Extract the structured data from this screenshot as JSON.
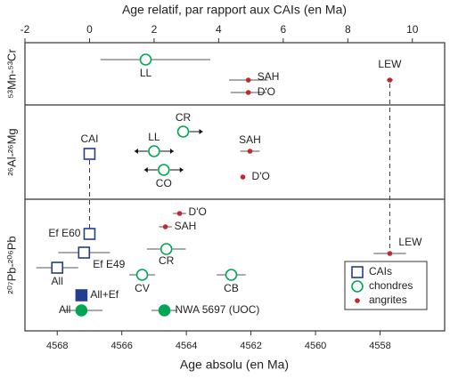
{
  "chart_data": {
    "type": "errorbar",
    "title": "Age relatif, par rapport aux CAIs (en Ma)",
    "xlabel": "Age absolu (en Ma)",
    "xlim": [
      -2,
      11
    ],
    "xticks": [
      -2,
      0,
      2,
      4,
      6,
      8,
      10
    ],
    "x2lim": [
      4569,
      4556
    ],
    "x2ticks": [
      4568,
      4566,
      4564,
      4562,
      4560,
      4558
    ],
    "series": [
      {
        "name": "CAIs",
        "color": "#263c8f",
        "marker": "square"
      },
      {
        "name": "chondres",
        "color": "#00a651",
        "marker": "circle"
      },
      {
        "name": "angrites",
        "color": "#c1272d",
        "marker": "dot"
      }
    ],
    "panels": [
      {
        "ylabel": "⁵³Mn-⁵³Cr",
        "points": [
          {
            "label": "LL",
            "value": 1.74,
            "err": [
              1.4,
              2.0
            ],
            "group": 1
          },
          {
            "label": "SAH",
            "value": 4.92,
            "err": 0.6,
            "group": 2
          },
          {
            "label": "D'O",
            "value": 4.92,
            "err": 0.55,
            "group": 2
          },
          {
            "label": "LEW",
            "value": 9.3,
            "err": 0.1,
            "group": 2
          }
        ]
      },
      {
        "ylabel": "²⁶Al-²⁶Mg",
        "points": [
          {
            "label": "CAI",
            "value": 0,
            "group": 0
          },
          {
            "label": "CR",
            "value": 2.9,
            "group": 1,
            "arrows": "right"
          },
          {
            "label": "LL",
            "value": 2.0,
            "group": 1,
            "arrows": "both"
          },
          {
            "label": "SAH",
            "value": 4.97,
            "err": 0.3,
            "group": 2
          },
          {
            "label": "CO",
            "value": 2.3,
            "group": 1,
            "arrows": "both"
          },
          {
            "label": "D'O",
            "value": 4.75,
            "group": 2
          }
        ]
      },
      {
        "ylabel": "²⁰⁷Pb-²⁰⁶Pb",
        "points": [
          {
            "label": "D'O",
            "value": 2.79,
            "err": 0.2,
            "group": 2
          },
          {
            "label": "SAH",
            "value": 2.35,
            "err": 0.2,
            "group": 2
          },
          {
            "label": "Ef E60",
            "value": 0,
            "group": 0
          },
          {
            "label": "CR",
            "value": 2.38,
            "err": 0.6,
            "group": 1
          },
          {
            "label": "LEW",
            "value": 9.3,
            "err": 0.5,
            "group": 2
          },
          {
            "label": "Ef E49",
            "value": -0.17,
            "err": 0.8,
            "group": 0
          },
          {
            "label": "All",
            "value": -1.0,
            "err": 0.65,
            "group": 0
          },
          {
            "label": "CV",
            "value": 1.63,
            "err": 0.4,
            "group": 1
          },
          {
            "label": "CB",
            "value": 4.39,
            "err": 0.45,
            "group": 1
          },
          {
            "label": "All+Ef",
            "value": -0.25,
            "group": 0,
            "filled": true
          },
          {
            "label": "All",
            "value": -0.25,
            "err": 0.65,
            "group": 1,
            "filled": true
          },
          {
            "label": "NWA 5697 (UOC)",
            "value": 2.32,
            "err": 0.4,
            "group": 1,
            "filled": true
          }
        ]
      }
    ]
  }
}
